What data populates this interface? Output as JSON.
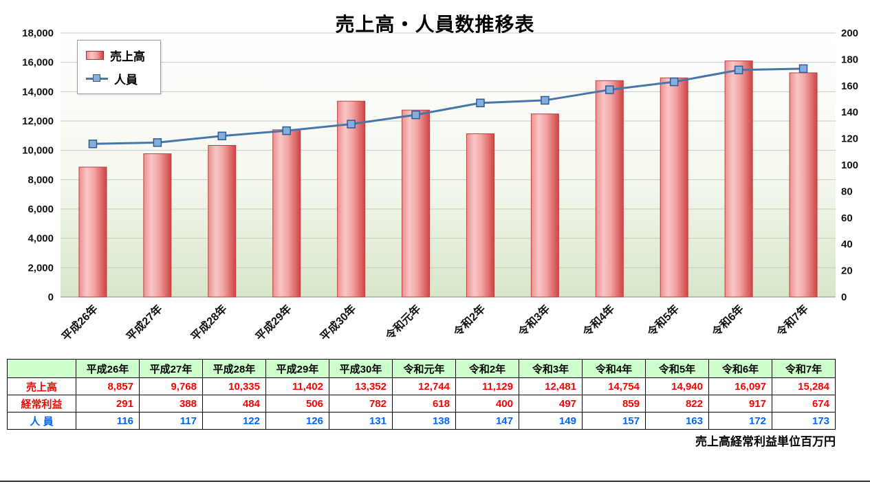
{
  "title": "売上高・人員数推移表",
  "footnote": "売上高経常利益単位百万円",
  "legend": {
    "sales": "売上高",
    "personnel": "人員"
  },
  "chart_data": {
    "type": "bar+line",
    "title": "売上高・人員数推移表",
    "categories": [
      "平成26年",
      "平成27年",
      "平成28年",
      "平成29年",
      "平成30年",
      "令和元年",
      "令和2年",
      "令和3年",
      "令和4年",
      "令和5年",
      "令和6年",
      "令和7年"
    ],
    "series": [
      {
        "name": "売上高",
        "type": "bar",
        "axis": "left",
        "color": "#d94f4f",
        "values": [
          8857,
          9768,
          10335,
          11402,
          13352,
          12744,
          11129,
          12481,
          14754,
          14940,
          16097,
          15284
        ]
      },
      {
        "name": "人員",
        "type": "line",
        "axis": "right",
        "color": "#4876ab",
        "values": [
          116,
          117,
          122,
          126,
          131,
          138,
          147,
          149,
          157,
          163,
          172,
          173
        ]
      }
    ],
    "left_axis": {
      "min": 0,
      "max": 18000,
      "step": 2000
    },
    "right_axis": {
      "min": 0,
      "max": 200,
      "step": 20
    },
    "grid": true,
    "legend_position": "top-left"
  },
  "table": {
    "columns": [
      "平成26年",
      "平成27年",
      "平成28年",
      "平成29年",
      "平成30年",
      "令和元年",
      "令和2年",
      "令和3年",
      "令和4年",
      "令和5年",
      "令和6年",
      "令和7年"
    ],
    "rows": [
      {
        "label": "売上高",
        "color": "#ff0000",
        "values": [
          "8,857",
          "9,768",
          "10,335",
          "11,402",
          "13,352",
          "12,744",
          "11,129",
          "12,481",
          "14,754",
          "14,940",
          "16,097",
          "15,284"
        ]
      },
      {
        "label": "経常利益",
        "color": "#ff0000",
        "values": [
          "291",
          "388",
          "484",
          "506",
          "782",
          "618",
          "400",
          "497",
          "859",
          "822",
          "917",
          "674"
        ]
      },
      {
        "label": "人 員",
        "color": "#0066ff",
        "values": [
          "116",
          "117",
          "122",
          "126",
          "131",
          "138",
          "147",
          "149",
          "157",
          "163",
          "172",
          "173"
        ]
      }
    ]
  }
}
